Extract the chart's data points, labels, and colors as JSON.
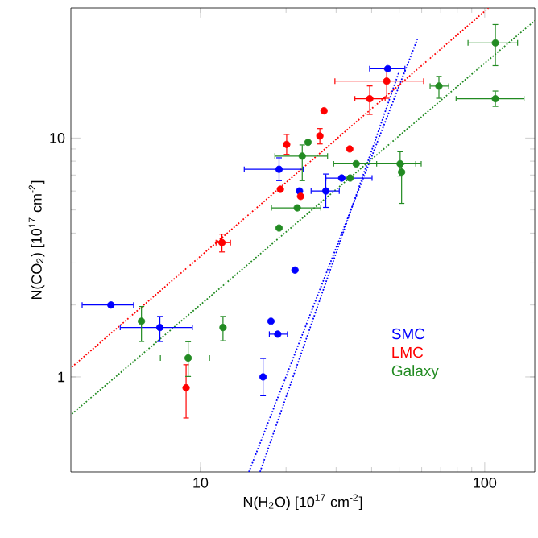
{
  "chart_data": {
    "type": "scatter",
    "xlabel": "N(H$_{2}$O)  [10$^{17}$ cm$^{-2}$]",
    "ylabel": "N(CO$_{2}$)  [10$^{17}$ cm$^{-2}$]",
    "xlim": [
      3.5,
      150
    ],
    "ylim": [
      0.4,
      35
    ],
    "xticks": [
      10,
      100
    ],
    "yticks": [
      1,
      10
    ],
    "log": "xy",
    "legend": "bottom right",
    "marker": "circle",
    "series": [
      {
        "name": "SMC",
        "color": "#0000ff",
        "x": [
          45.6,
          18.9,
          22.3,
          27.6,
          31.4,
          21.5,
          4.84,
          7.2,
          17.7,
          18.7,
          16.6
        ],
        "values": [
          19.5,
          7.4,
          6.0,
          6.0,
          6.8,
          2.8,
          2.0,
          1.61,
          1.71,
          1.51,
          1.0
        ],
        "errors": [
          null,
          [
            6.6,
            8.3
          ],
          null,
          [
            5.1,
            7.1
          ],
          null,
          null,
          null,
          [
            1.4,
            1.8
          ],
          null,
          null,
          [
            0.83,
            1.2
          ]
        ],
        "xerrors": [
          [
            39.2,
            52.6
          ],
          [
            14.2,
            23.1
          ],
          null,
          [
            24.4,
            30.9
          ],
          [
            27.5,
            40.3
          ],
          null,
          [
            3.82,
            5.84
          ],
          [
            5.2,
            9.4
          ],
          null,
          [
            17.4,
            20.3
          ],
          null
        ]
      },
      {
        "name": "LMC",
        "color": "#ff0000",
        "x": [
          45.2,
          39.4,
          27.2,
          26.3,
          20.1,
          33.5,
          19.1,
          22.5,
          11.9,
          8.9
        ],
        "values": [
          17.3,
          14.6,
          13.0,
          10.2,
          9.4,
          9.0,
          6.1,
          5.7,
          3.65,
          0.9
        ],
        "errors": [
          [
            14.6,
            19.5
          ],
          [
            12.5,
            16.6
          ],
          null,
          [
            9.4,
            11.0
          ],
          [
            8.5,
            10.4
          ],
          null,
          null,
          null,
          [
            3.32,
            3.98
          ],
          [
            0.67,
            1.13
          ]
        ],
        "xerrors": [
          [
            29.6,
            61.2
          ],
          [
            34.8,
            44.8
          ],
          null,
          null,
          null,
          null,
          null,
          null,
          [
            11.3,
            12.8
          ],
          null
        ]
      },
      {
        "name": "Galaxy",
        "color": "#228b22",
        "x": [
          109,
          69,
          109,
          23.9,
          22.8,
          35.3,
          50.4,
          51,
          33.6,
          21.9,
          18.9,
          6.2,
          12.0,
          9.05
        ],
        "values": [
          25,
          16.5,
          14.6,
          9.6,
          8.4,
          7.8,
          7.8,
          7.2,
          6.8,
          5.1,
          4.2,
          1.71,
          1.61,
          1.2
        ],
        "errors": [
          [
            20,
            30
          ],
          [
            14.6,
            18.2
          ],
          [
            13.5,
            15.8
          ],
          null,
          [
            6.6,
            9.4
          ],
          null,
          [
            6.9,
            8.8
          ],
          [
            5.3,
            7.8
          ],
          null,
          null,
          null,
          [
            1.4,
            1.98
          ],
          [
            1.41,
            1.8
          ],
          [
            1.0,
            1.41
          ]
        ],
        "xerrors": [
          [
            87,
            131
          ],
          [
            64,
            75
          ],
          [
            79,
            138
          ],
          null,
          [
            18.2,
            28.1
          ],
          [
            29.3,
            57.4
          ],
          [
            41.5,
            60
          ],
          null,
          null,
          [
            17.7,
            26.6
          ],
          null,
          null,
          null,
          [
            7.2,
            10.8
          ]
        ]
      },
      {
        "type": "line",
        "color": "#ff0000",
        "line_style": "dotted",
        "marker": "none",
        "x": [
          3.53,
          103
        ],
        "values": [
          1.1,
          35
        ]
      },
      {
        "type": "line",
        "color": "#228b22",
        "line_style": "dotted",
        "marker": "none",
        "x": [
          3.53,
          150
        ],
        "values": [
          0.7,
          31
        ]
      },
      {
        "type": "line",
        "color": "#0000ff",
        "line_style": "dotted",
        "marker": "none",
        "x": [
          14.8,
          58
        ],
        "values": [
          0.4,
          26
        ]
      },
      {
        "type": "line",
        "color": "#0000ff",
        "line_style": "dotted",
        "marker": "none",
        "x": [
          16.2,
          50
        ],
        "values": [
          0.4,
          19
        ]
      }
    ]
  }
}
